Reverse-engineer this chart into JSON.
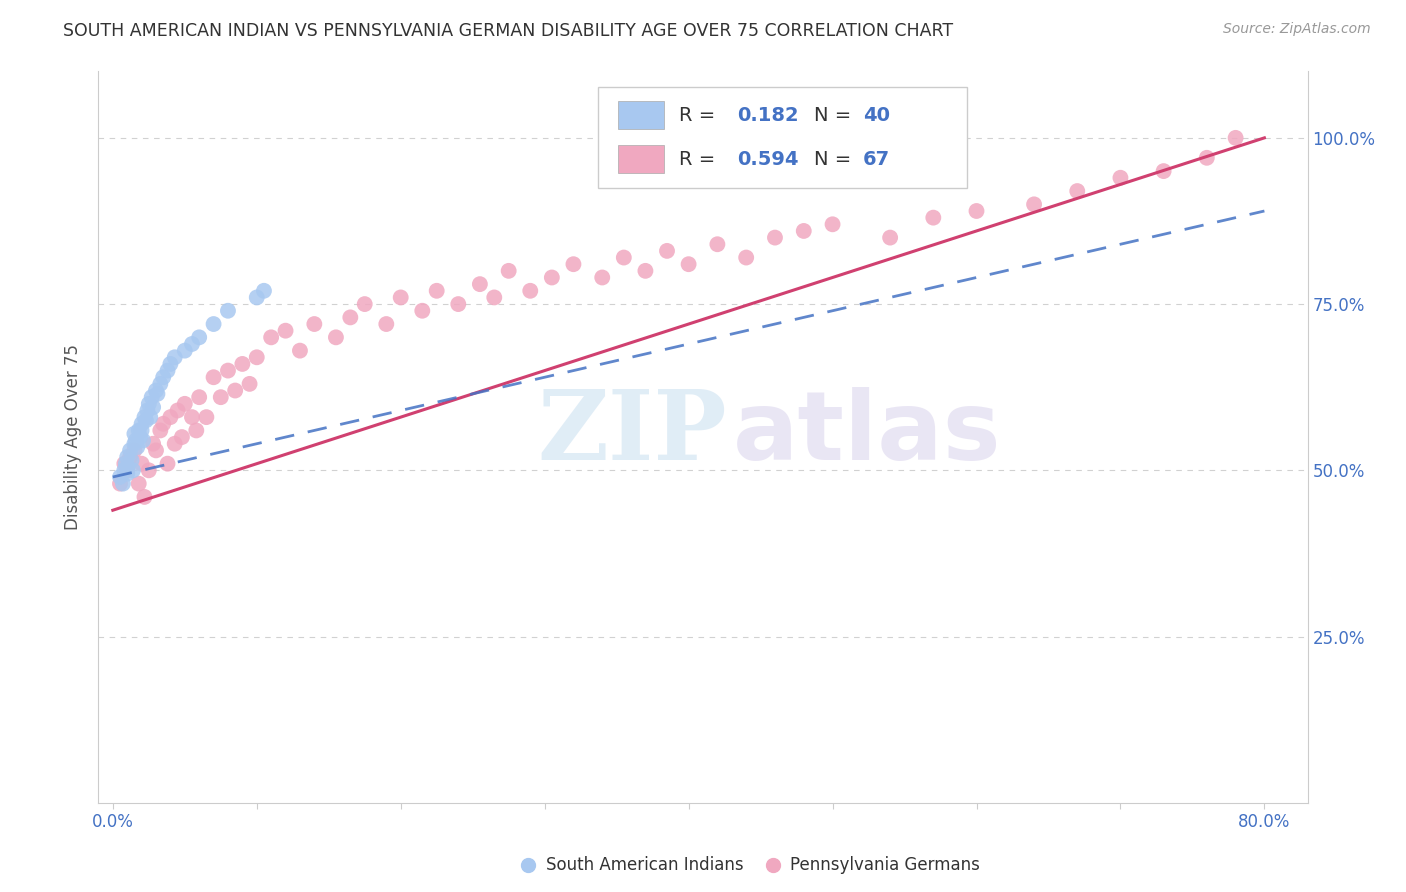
{
  "title": "SOUTH AMERICAN INDIAN VS PENNSYLVANIA GERMAN DISABILITY AGE OVER 75 CORRELATION CHART",
  "source": "Source: ZipAtlas.com",
  "ylabel": "Disability Age Over 75",
  "blue_color": "#a8c8f0",
  "pink_color": "#f0a8c0",
  "blue_line_color": "#4472c4",
  "pink_line_color": "#d04070",
  "blue_R": 0.182,
  "blue_N": 40,
  "pink_R": 0.594,
  "pink_N": 67,
  "watermark_zip": "ZIP",
  "watermark_atlas": "atlas",
  "label_blue": "South American Indians",
  "label_pink": "Pennsylvania Germans",
  "grid_color": "#cccccc",
  "blue_x": [
    0.005,
    0.007,
    0.008,
    0.009,
    0.01,
    0.01,
    0.01,
    0.012,
    0.013,
    0.014,
    0.015,
    0.015,
    0.016,
    0.017,
    0.018,
    0.019,
    0.02,
    0.02,
    0.021,
    0.022,
    0.023,
    0.024,
    0.025,
    0.026,
    0.027,
    0.028,
    0.03,
    0.031,
    0.033,
    0.035,
    0.038,
    0.04,
    0.043,
    0.05,
    0.055,
    0.06,
    0.07,
    0.08,
    0.1,
    0.105
  ],
  "blue_y": [
    0.49,
    0.48,
    0.5,
    0.51,
    0.495,
    0.505,
    0.52,
    0.53,
    0.515,
    0.5,
    0.54,
    0.555,
    0.545,
    0.535,
    0.56,
    0.55,
    0.57,
    0.56,
    0.545,
    0.58,
    0.575,
    0.59,
    0.6,
    0.58,
    0.61,
    0.595,
    0.62,
    0.615,
    0.63,
    0.64,
    0.65,
    0.66,
    0.67,
    0.68,
    0.69,
    0.7,
    0.72,
    0.74,
    0.76,
    0.77
  ],
  "pink_x": [
    0.005,
    0.008,
    0.01,
    0.012,
    0.015,
    0.018,
    0.02,
    0.022,
    0.025,
    0.028,
    0.03,
    0.033,
    0.035,
    0.038,
    0.04,
    0.043,
    0.045,
    0.048,
    0.05,
    0.055,
    0.058,
    0.06,
    0.065,
    0.07,
    0.075,
    0.08,
    0.085,
    0.09,
    0.095,
    0.1,
    0.11,
    0.12,
    0.13,
    0.14,
    0.155,
    0.165,
    0.175,
    0.19,
    0.2,
    0.215,
    0.225,
    0.24,
    0.255,
    0.265,
    0.275,
    0.29,
    0.305,
    0.32,
    0.34,
    0.355,
    0.37,
    0.385,
    0.4,
    0.42,
    0.44,
    0.46,
    0.48,
    0.5,
    0.54,
    0.57,
    0.6,
    0.64,
    0.67,
    0.7,
    0.73,
    0.76,
    0.78
  ],
  "pink_y": [
    0.48,
    0.51,
    0.5,
    0.52,
    0.53,
    0.48,
    0.51,
    0.46,
    0.5,
    0.54,
    0.53,
    0.56,
    0.57,
    0.51,
    0.58,
    0.54,
    0.59,
    0.55,
    0.6,
    0.58,
    0.56,
    0.61,
    0.58,
    0.64,
    0.61,
    0.65,
    0.62,
    0.66,
    0.63,
    0.67,
    0.7,
    0.71,
    0.68,
    0.72,
    0.7,
    0.73,
    0.75,
    0.72,
    0.76,
    0.74,
    0.77,
    0.75,
    0.78,
    0.76,
    0.8,
    0.77,
    0.79,
    0.81,
    0.79,
    0.82,
    0.8,
    0.83,
    0.81,
    0.84,
    0.82,
    0.85,
    0.86,
    0.87,
    0.85,
    0.88,
    0.89,
    0.9,
    0.92,
    0.94,
    0.95,
    0.97,
    1.0
  ]
}
